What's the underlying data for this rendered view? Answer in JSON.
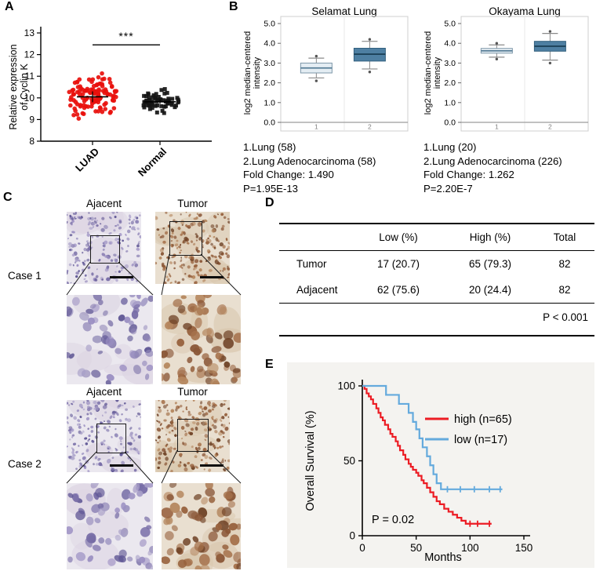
{
  "labels": {
    "a": "A",
    "b": "B",
    "c": "C",
    "d": "D",
    "e": "E"
  },
  "chart_data": [
    {
      "id": "cyclin-k-expression",
      "type": "scatter",
      "ylabel": "Relative expression of Cyclin K",
      "ylabel_lines": [
        "Relative expression",
        "of Cyclin K"
      ],
      "ylim": [
        8,
        13
      ],
      "yticks": [
        8,
        9,
        10,
        11,
        12,
        13
      ],
      "categories": [
        "LUAD",
        "Normal"
      ],
      "groups": [
        {
          "label": "LUAD",
          "marker": "circle",
          "color": "#e8100c",
          "n": 120,
          "mean": 10.05,
          "sd": 0.5,
          "min": 8.75,
          "max": 11.3
        },
        {
          "label": "Normal",
          "marker": "square",
          "color": "#141414",
          "n": 62,
          "mean": 9.82,
          "sd": 0.2,
          "min": 9.3,
          "max": 10.45
        }
      ],
      "significance": "***"
    },
    {
      "id": "selamat-lung",
      "type": "box",
      "title": "Selamat Lung",
      "ylabel": "log2 median-centered intensity",
      "ylabel_lines": [
        "log2 median-centered",
        "intensity"
      ],
      "ylim": [
        0,
        5
      ],
      "yticks": [
        "0.0",
        "1.0",
        "2.0",
        "3.0",
        "4.0",
        "5.0"
      ],
      "boxes": [
        {
          "x_label": "1",
          "group": "Lung",
          "whisker_low": 2.25,
          "q1": 2.5,
          "median": 2.75,
          "q3": 3.0,
          "whisker_high": 3.25,
          "outliers": [
            2.1,
            3.35
          ],
          "fill": "#e4edf3",
          "stroke": "#7d97a9",
          "median_color": "#4d7690"
        },
        {
          "x_label": "2",
          "group": "Lung Adenocarcinoma",
          "whisker_low": 2.7,
          "q1": 3.1,
          "median": 3.45,
          "q3": 3.75,
          "whisker_high": 4.1,
          "outliers": [
            2.55,
            4.2
          ],
          "fill": "#4e7fa2",
          "stroke": "#33607e",
          "median_color": "#15384e"
        }
      ],
      "caption_lines": [
        "1.Lung (58)",
        "2.Lung Adenocarcinoma (58)",
        "Fold Change: 1.490",
        "P=1.95E-13"
      ]
    },
    {
      "id": "okayama-lung",
      "type": "box",
      "title": "Okayama Lung",
      "ylabel": "log2 median-centered intensity",
      "ylabel_lines": [
        "log2 median-centered",
        "intensity"
      ],
      "ylim": [
        0,
        5
      ],
      "yticks": [
        "0.0",
        "1.0",
        "2.0",
        "3.0",
        "4.0",
        "5.0"
      ],
      "boxes": [
        {
          "x_label": "1",
          "group": "Lung",
          "whisker_low": 3.3,
          "q1": 3.5,
          "median": 3.62,
          "q3": 3.74,
          "whisker_high": 3.92,
          "outliers": [
            3.2,
            4.0
          ],
          "fill": "#e4edf3",
          "stroke": "#7d97a9",
          "median_color": "#4d7690"
        },
        {
          "x_label": "2",
          "group": "Lung Adenocarcinoma",
          "whisker_low": 3.15,
          "q1": 3.6,
          "median": 3.85,
          "q3": 4.1,
          "whisker_high": 4.5,
          "outliers": [
            3.0,
            4.6
          ],
          "fill": "#4e7fa2",
          "stroke": "#33607e",
          "median_color": "#15384e"
        }
      ],
      "caption_lines": [
        "1.Lung (20)",
        "2.Lung Adenocarcinoma (226)",
        "Fold Change: 1.262",
        "P=2.20E-7"
      ]
    },
    {
      "id": "overall-survival",
      "type": "line",
      "xlabel": "Months",
      "ylabel": "Overall Survival (%)",
      "xlim": [
        0,
        150
      ],
      "xticks": [
        0,
        50,
        100,
        150
      ],
      "ylim": [
        0,
        100
      ],
      "yticks": [
        0,
        50,
        100
      ],
      "p_text": "P = 0.02",
      "legend_position": "right-upper",
      "series": [
        {
          "name": "high (n=65)",
          "color": "#ec1c24",
          "steps": [
            [
              0,
              100
            ],
            [
              2,
              98
            ],
            [
              4,
              95
            ],
            [
              6,
              93
            ],
            [
              8,
              91
            ],
            [
              10,
              88
            ],
            [
              13,
              85
            ],
            [
              15,
              82
            ],
            [
              17,
              79
            ],
            [
              19,
              77
            ],
            [
              21,
              74
            ],
            [
              24,
              71
            ],
            [
              26,
              68
            ],
            [
              28,
              66
            ],
            [
              31,
              63
            ],
            [
              33,
              60
            ],
            [
              35,
              57
            ],
            [
              38,
              54
            ],
            [
              40,
              51
            ],
            [
              43,
              48
            ],
            [
              45,
              46
            ],
            [
              47,
              44
            ],
            [
              50,
              42
            ],
            [
              52,
              40
            ],
            [
              55,
              37
            ],
            [
              57,
              35
            ],
            [
              60,
              32
            ],
            [
              63,
              29
            ],
            [
              66,
              26
            ],
            [
              69,
              23
            ],
            [
              72,
              21
            ],
            [
              76,
              18
            ],
            [
              80,
              16
            ],
            [
              84,
              14
            ],
            [
              88,
              12
            ],
            [
              92,
              10
            ],
            [
              96,
              8
            ],
            [
              120,
              8
            ]
          ],
          "censor_times": [
            100,
            107,
            118
          ]
        },
        {
          "name": "low (n=17)",
          "color": "#64aadd",
          "steps": [
            [
              0,
              100
            ],
            [
              19,
              100
            ],
            [
              22,
              94
            ],
            [
              30,
              94
            ],
            [
              34,
              88
            ],
            [
              40,
              88
            ],
            [
              43,
              82
            ],
            [
              47,
              76
            ],
            [
              50,
              71
            ],
            [
              53,
              65
            ],
            [
              56,
              59
            ],
            [
              60,
              53
            ],
            [
              63,
              47
            ],
            [
              66,
              41
            ],
            [
              69,
              35
            ],
            [
              73,
              31
            ],
            [
              130,
              31
            ]
          ],
          "censor_times": [
            79,
            91,
            104,
            118,
            128
          ]
        }
      ]
    }
  ],
  "panel_c": {
    "cases": [
      {
        "label": "Case 1",
        "columns": [
          "Ajacent",
          "Tumor"
        ]
      },
      {
        "label": "Case 2",
        "columns": [
          "Ajacent",
          "Tumor"
        ]
      }
    ],
    "stains": {
      "adjacent": {
        "bg": "#ebe8ef",
        "blob": "#dcd4e2",
        "nuclei": [
          "#8e84b6",
          "#776da6",
          "#a79ec7",
          "#5f5694",
          "#9b8fc2"
        ]
      },
      "tumor": {
        "bg": "#e9dfd0",
        "blob": "#d8c6ac",
        "nuclei": [
          "#a5714b",
          "#8a5637",
          "#b5875f",
          "#6f4226",
          "#97613d"
        ]
      }
    }
  },
  "panel_d": {
    "headers": [
      "",
      "Low (%)",
      "High (%)",
      "Total"
    ],
    "rows": [
      {
        "label": "Tumor",
        "low": "17 (20.7)",
        "high": "65 (79.3)",
        "total": "82"
      },
      {
        "label": "Adjacent",
        "low": "62 (75.6)",
        "high": "20 (24.4)",
        "total": "82"
      }
    ],
    "footnote": "P < 0.001"
  }
}
